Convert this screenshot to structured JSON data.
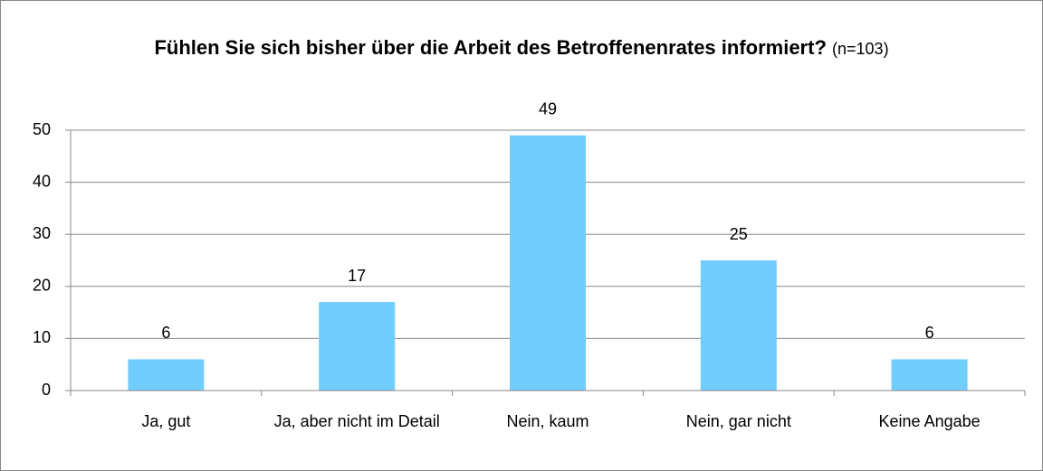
{
  "chart_data": {
    "type": "bar",
    "title": "Fühlen Sie sich bisher über die Arbeit des Betroffenenrates informiert?",
    "subtitle": "(n=103)",
    "categories": [
      "Ja, gut",
      "Ja, aber nicht im Detail",
      "Nein, kaum",
      "Nein, gar nicht",
      "Keine Angabe"
    ],
    "values": [
      6,
      17,
      49,
      25,
      6
    ],
    "color": "#71cdfc",
    "ylim": [
      0,
      50
    ],
    "yticks": [
      0,
      10,
      20,
      30,
      40,
      50
    ],
    "grid": true
  }
}
